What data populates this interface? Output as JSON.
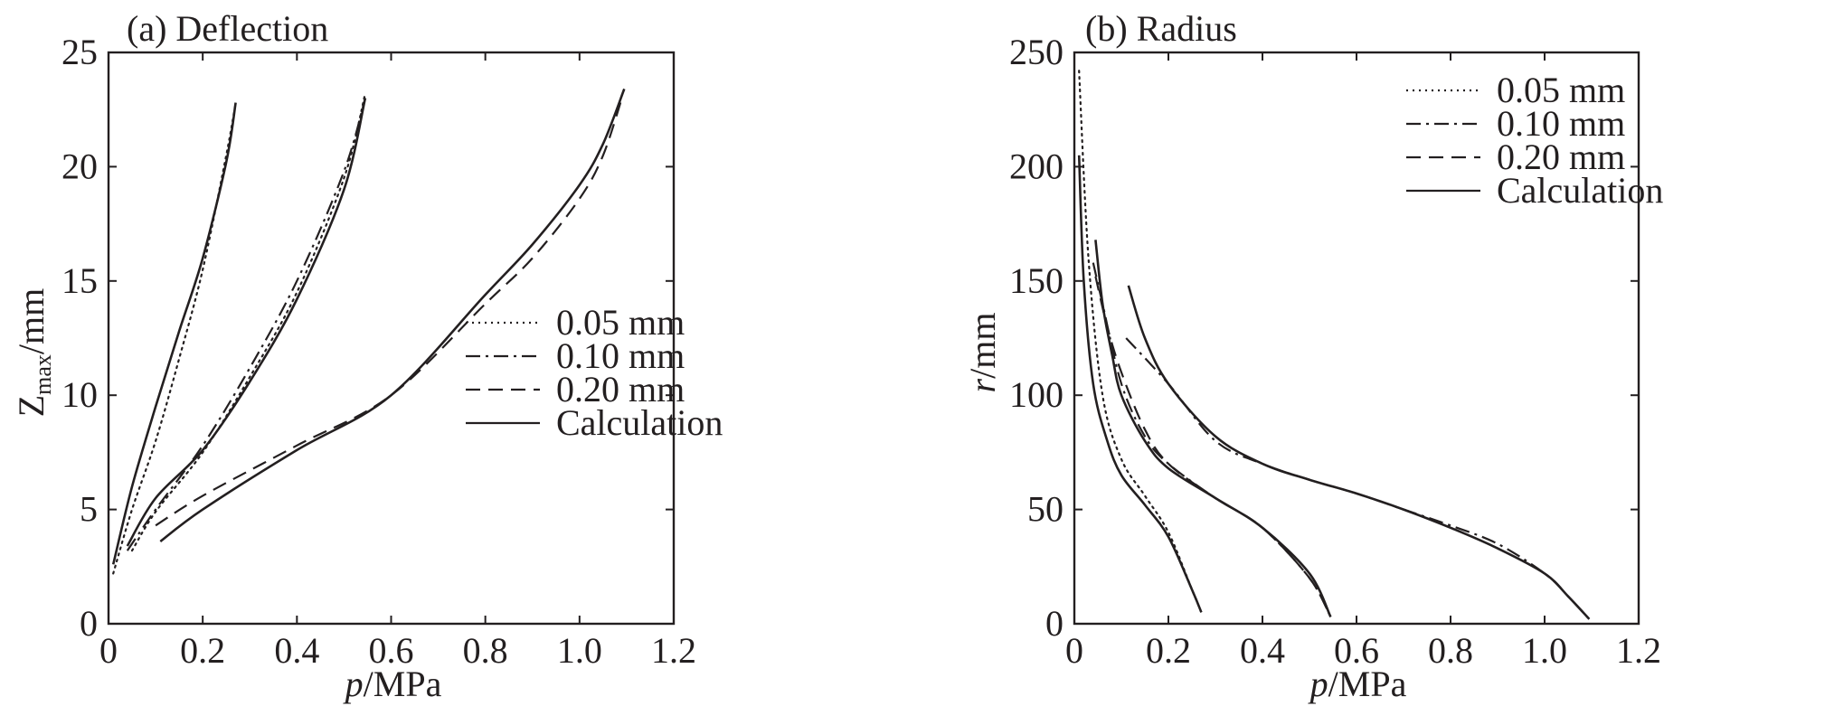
{
  "chart_data": [
    {
      "type": "line",
      "title": "(a) Deflection",
      "xlabel": "p/MPa",
      "xlabel_parts": {
        "var": "p",
        "unit": "/MPa"
      },
      "ylabel": "Zmax/mm",
      "ylabel_parts": {
        "var": "Z",
        "sub": "max",
        "unit": "/mm"
      },
      "xlim": [
        0,
        1.2
      ],
      "ylim": [
        0,
        25
      ],
      "xticks": [
        0,
        0.2,
        0.4,
        0.6,
        0.8,
        1.0,
        1.2
      ],
      "xtick_labels": [
        "0",
        "0.2",
        "0.4",
        "0.6",
        "0.8",
        "1.0",
        "1.2"
      ],
      "yticks": [
        0,
        5,
        10,
        15,
        20,
        25
      ],
      "ytick_labels": [
        "0",
        "5",
        "10",
        "15",
        "20",
        "25"
      ],
      "grid": false,
      "legend_position": "bottom-right",
      "legend": [
        {
          "label": "0.05 mm",
          "style": "dotted"
        },
        {
          "label": "0.10 mm",
          "style": "dashdot"
        },
        {
          "label": "0.20 mm",
          "style": "dashed"
        },
        {
          "label": "Calculation",
          "style": "solid"
        }
      ],
      "series": [
        {
          "style": "dotted",
          "x": [
            0.01,
            0.05,
            0.1,
            0.15,
            0.2,
            0.25,
            0.27
          ],
          "y": [
            2.2,
            5.0,
            8.0,
            11.6,
            15.5,
            20.5,
            22.8
          ]
        },
        {
          "style": "solid",
          "x": [
            0.01,
            0.05,
            0.1,
            0.15,
            0.2,
            0.25,
            0.27
          ],
          "y": [
            2.6,
            6.0,
            9.5,
            12.8,
            16.0,
            20.2,
            22.8
          ]
        },
        {
          "style": "dotted",
          "x": [
            0.05,
            0.1,
            0.2,
            0.3,
            0.4,
            0.5,
            0.545
          ],
          "y": [
            3.2,
            4.9,
            7.5,
            10.8,
            14.5,
            19.5,
            23.2
          ]
        },
        {
          "style": "dashdot",
          "x": [
            0.04,
            0.1,
            0.2,
            0.3,
            0.4,
            0.5,
            0.545
          ],
          "y": [
            3.2,
            5.0,
            7.8,
            11.2,
            15.0,
            19.8,
            23.0
          ]
        },
        {
          "style": "solid",
          "x": [
            0.04,
            0.1,
            0.2,
            0.3,
            0.4,
            0.5,
            0.545
          ],
          "y": [
            3.4,
            5.5,
            7.6,
            10.6,
            14.2,
            19.0,
            23.0
          ]
        },
        {
          "style": "dashed",
          "x": [
            0.1,
            0.2,
            0.4,
            0.6,
            0.8,
            0.9,
            1.0,
            1.05,
            1.09
          ],
          "y": [
            4.3,
            5.6,
            7.8,
            10.0,
            14.0,
            16.0,
            18.6,
            20.5,
            23.0
          ]
        },
        {
          "style": "solid",
          "x": [
            0.11,
            0.2,
            0.4,
            0.6,
            0.8,
            0.9,
            1.0,
            1.05,
            1.095
          ],
          "y": [
            3.6,
            5.0,
            7.6,
            10.0,
            14.4,
            16.6,
            19.2,
            21.0,
            23.4
          ]
        }
      ]
    },
    {
      "type": "line",
      "title": "(b) Radius",
      "xlabel": "p/MPa",
      "xlabel_parts": {
        "var": "p",
        "unit": "/MPa"
      },
      "ylabel": "r/mm",
      "ylabel_parts": {
        "var": "r",
        "unit": "/mm"
      },
      "xlim": [
        0,
        1.2
      ],
      "ylim": [
        0,
        250
      ],
      "xticks": [
        0,
        0.2,
        0.4,
        0.6,
        0.8,
        1.0,
        1.2
      ],
      "xtick_labels": [
        "0",
        "0.2",
        "0.4",
        "0.6",
        "0.8",
        "1.0",
        "1.2"
      ],
      "yticks": [
        0,
        50,
        100,
        150,
        200,
        250
      ],
      "ytick_labels": [
        "0",
        "50",
        "100",
        "150",
        "200",
        "250"
      ],
      "grid": false,
      "legend_position": "top-right",
      "legend": [
        {
          "label": "0.05 mm",
          "style": "dotted"
        },
        {
          "label": "0.10 mm",
          "style": "dashdot"
        },
        {
          "label": "0.20 mm",
          "style": "dashed"
        },
        {
          "label": "Calculation",
          "style": "solid"
        }
      ],
      "series": [
        {
          "style": "dotted",
          "x": [
            0.01,
            0.03,
            0.06,
            0.1,
            0.15,
            0.2,
            0.25,
            0.27
          ],
          "y": [
            242,
            160,
            100,
            72,
            56,
            40,
            15,
            5
          ]
        },
        {
          "style": "solid",
          "x": [
            0.01,
            0.02,
            0.04,
            0.07,
            0.1,
            0.15,
            0.2,
            0.25,
            0.27
          ],
          "y": [
            205,
            150,
            105,
            80,
            65,
            52,
            38,
            15,
            5
          ]
        },
        {
          "style": "dashdot",
          "x": [
            0.04,
            0.06,
            0.1,
            0.15,
            0.2,
            0.3,
            0.4,
            0.5,
            0.545
          ],
          "y": [
            158,
            140,
            105,
            82,
            70,
            55,
            42,
            20,
            3
          ]
        },
        {
          "style": "dashed",
          "x": [
            0.045,
            0.07,
            0.1,
            0.15,
            0.2,
            0.3,
            0.4,
            0.5,
            0.545
          ],
          "y": [
            152,
            130,
            110,
            85,
            70,
            55,
            42,
            20,
            3
          ]
        },
        {
          "style": "solid",
          "x": [
            0.045,
            0.06,
            0.08,
            0.1,
            0.15,
            0.2,
            0.3,
            0.4,
            0.5,
            0.545
          ],
          "y": [
            168,
            140,
            118,
            100,
            80,
            68,
            55,
            42,
            22,
            3
          ]
        },
        {
          "style": "dashdot",
          "x": [
            0.11,
            0.2,
            0.3,
            0.4,
            0.5,
            0.6,
            0.7,
            0.8,
            0.9,
            1.0,
            1.05,
            1.095
          ],
          "y": [
            125,
            105,
            80,
            70,
            63,
            57,
            50,
            43,
            35,
            22,
            12,
            2
          ]
        },
        {
          "style": "solid",
          "x": [
            0.115,
            0.15,
            0.2,
            0.3,
            0.4,
            0.5,
            0.6,
            0.7,
            0.8,
            0.9,
            1.0,
            1.05,
            1.095
          ],
          "y": [
            148,
            125,
            105,
            82,
            70,
            63,
            57,
            50,
            42,
            33,
            22,
            12,
            2
          ]
        }
      ]
    }
  ]
}
